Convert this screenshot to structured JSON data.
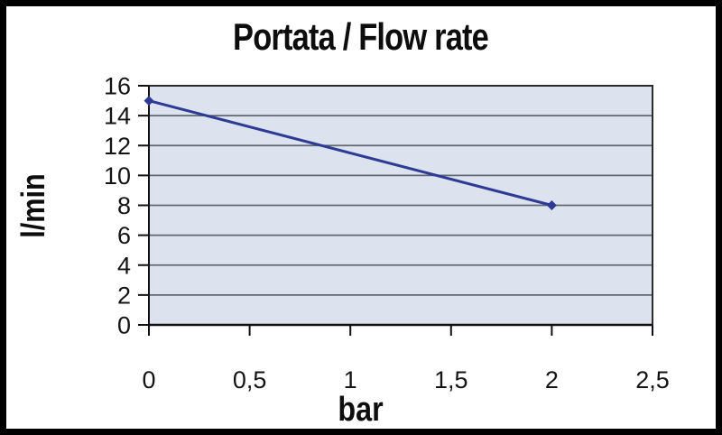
{
  "figure": {
    "frame_color": "#000000",
    "background": "#ffffff"
  },
  "chart_data": {
    "type": "line",
    "title": "Portata / Flow rate",
    "xlabel": "bar",
    "ylabel": "l/min",
    "xlim": [
      0,
      2.5
    ],
    "ylim": [
      0,
      16
    ],
    "grid": "horizontal",
    "legend": "none",
    "x_ticks": [
      {
        "value": 0,
        "label": "0"
      },
      {
        "value": 0.5,
        "label": "0,5"
      },
      {
        "value": 1,
        "label": "1"
      },
      {
        "value": 1.5,
        "label": "1,5"
      },
      {
        "value": 2,
        "label": "2"
      },
      {
        "value": 2.5,
        "label": "2,5"
      }
    ],
    "y_ticks": [
      {
        "value": 0,
        "label": "0"
      },
      {
        "value": 2,
        "label": "2"
      },
      {
        "value": 4,
        "label": "4"
      },
      {
        "value": 6,
        "label": "6"
      },
      {
        "value": 8,
        "label": "8"
      },
      {
        "value": 10,
        "label": "10"
      },
      {
        "value": 12,
        "label": "12"
      },
      {
        "value": 14,
        "label": "14"
      },
      {
        "value": 16,
        "label": "16"
      }
    ],
    "series": [
      {
        "name": "flow-rate",
        "x": [
          0,
          2
        ],
        "y": [
          15,
          8
        ],
        "color": "#2e3a94",
        "marker": "diamond",
        "line_width": 3
      }
    ],
    "colors": {
      "plot_background": "#dce3ee",
      "grid_line": "#5f6770",
      "plot_border": "#2b2b2b",
      "axis_line": "#111111",
      "tick_label": "#141414",
      "text": "#0d0d0d"
    }
  }
}
